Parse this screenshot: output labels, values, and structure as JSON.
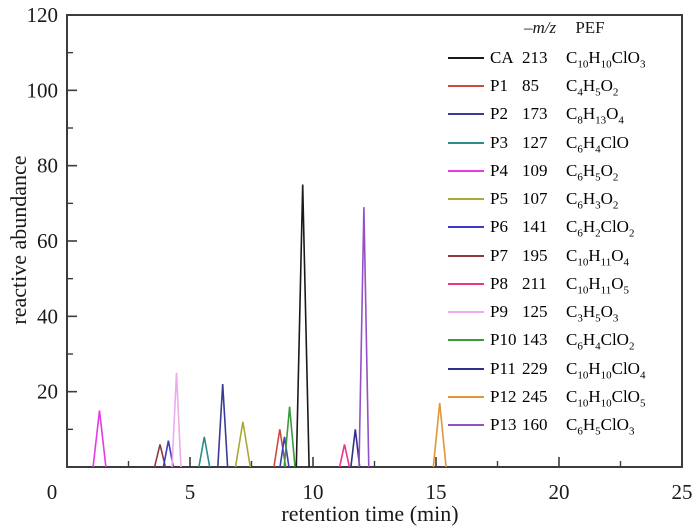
{
  "figure": {
    "xlabel": "retention time (min)",
    "ylabel": "reactive abundance"
  },
  "chart_data": {
    "type": "line",
    "subtype": "chromatogram-peaks",
    "title": "",
    "xlabel": "retention time (min)",
    "ylabel": "reactive abundance",
    "xlim": [
      0,
      25
    ],
    "ylim": [
      0,
      120
    ],
    "x_major_ticks": [
      0,
      5,
      10,
      15,
      20,
      25
    ],
    "x_minor_ticks": [
      2.5,
      7.5,
      12.5,
      17.5,
      22.5
    ],
    "y_major_ticks": [
      0,
      20,
      40,
      60,
      80,
      100,
      120
    ],
    "y_minor_ticks": [
      10,
      30,
      50,
      70,
      90,
      110
    ],
    "origin_label": "0",
    "grid": false,
    "frame_color": "#3c3c3c",
    "legend_position": "top-right",
    "legend_headers": {
      "mz": "–m/z",
      "pef": "PEF"
    },
    "series": [
      {
        "name": "CA",
        "mz": "213",
        "formula": "C10H10ClO3",
        "color": "#1a1a1a",
        "peaks": [
          {
            "t": 9.58,
            "h": 75,
            "w": 0.26
          }
        ]
      },
      {
        "name": "P1",
        "mz": "85",
        "formula": "C4H5O2",
        "color": "#cc4a42",
        "peaks": [
          {
            "t": 8.65,
            "h": 10,
            "w": 0.24
          }
        ]
      },
      {
        "name": "P2",
        "mz": "173",
        "formula": "C8H13O4",
        "color": "#3b3b96",
        "peaks": [
          {
            "t": 6.33,
            "h": 22,
            "w": 0.2
          }
        ]
      },
      {
        "name": "P3",
        "mz": "127",
        "formula": "C6H4ClO",
        "color": "#2e8b8b",
        "peaks": [
          {
            "t": 5.58,
            "h": 8,
            "w": 0.22
          }
        ]
      },
      {
        "name": "P4",
        "mz": "109",
        "formula": "C6H5O2",
        "color": "#e53ae5",
        "peaks": [
          {
            "t": 1.32,
            "h": 15,
            "w": 0.26
          }
        ]
      },
      {
        "name": "P5",
        "mz": "107",
        "formula": "C6H3O2",
        "color": "#a9a93c",
        "peaks": [
          {
            "t": 7.15,
            "h": 12,
            "w": 0.3
          }
        ]
      },
      {
        "name": "P6",
        "mz": "141",
        "formula": "C6H2ClO2",
        "color": "#3c3cc0",
        "peaks": [
          {
            "t": 4.12,
            "h": 7,
            "w": 0.2
          },
          {
            "t": 8.84,
            "h": 8,
            "w": 0.18
          }
        ]
      },
      {
        "name": "P7",
        "mz": "195",
        "formula": "C10H11O4",
        "color": "#8f3a3a",
        "peaks": [
          {
            "t": 3.78,
            "h": 6,
            "w": 0.22
          }
        ]
      },
      {
        "name": "P8",
        "mz": "211",
        "formula": "C10H11O5",
        "color": "#ec3488",
        "peaks": [
          {
            "t": 11.28,
            "h": 6,
            "w": 0.2
          }
        ]
      },
      {
        "name": "P9",
        "mz": "125",
        "formula": "C3H5O3",
        "color": "#edaaed",
        "peaks": [
          {
            "t": 4.45,
            "h": 25,
            "w": 0.18
          }
        ]
      },
      {
        "name": "P10",
        "mz": "143",
        "formula": "C6H4ClO2",
        "color": "#3c9a3c",
        "peaks": [
          {
            "t": 9.05,
            "h": 16,
            "w": 0.22
          }
        ]
      },
      {
        "name": "P11",
        "mz": "229",
        "formula": "C10H10ClO4",
        "color": "#30308c",
        "peaks": [
          {
            "t": 11.72,
            "h": 10,
            "w": 0.18
          }
        ]
      },
      {
        "name": "P12",
        "mz": "245",
        "formula": "C10H10ClO5",
        "color": "#e2953a",
        "peaks": [
          {
            "t": 15.15,
            "h": 17,
            "w": 0.26
          }
        ]
      },
      {
        "name": "P13",
        "mz": "160",
        "formula": "C6H5ClO3",
        "color": "#9350c8",
        "peaks": [
          {
            "t": 12.07,
            "h": 69,
            "w": 0.2
          }
        ]
      }
    ]
  }
}
